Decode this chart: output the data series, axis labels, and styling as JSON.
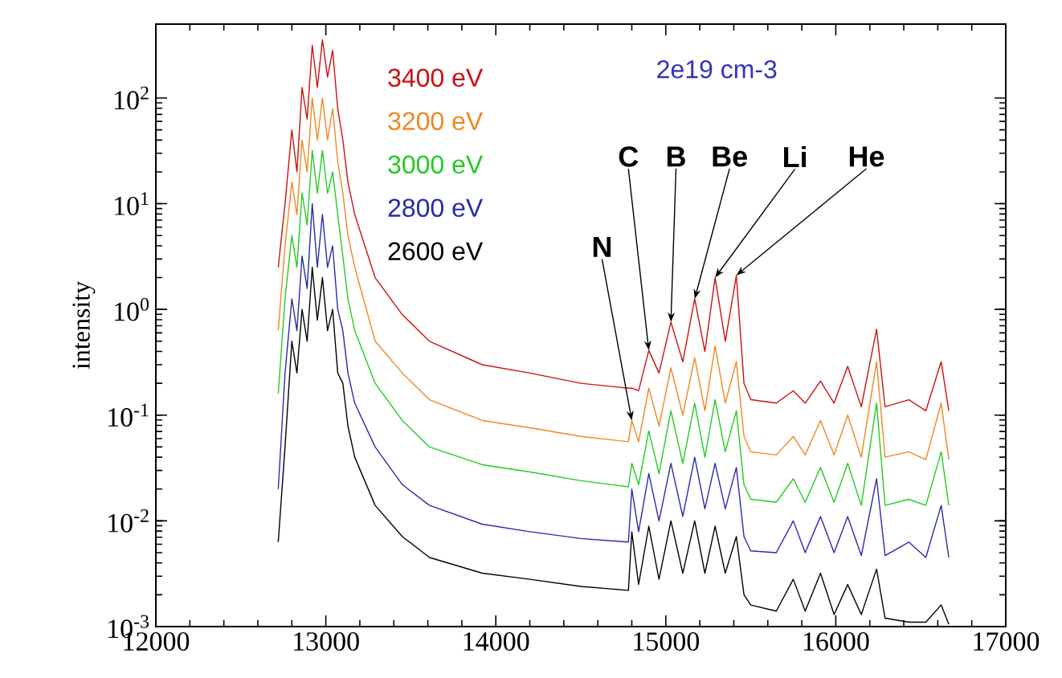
{
  "chart_data": {
    "type": "line",
    "ylabel": "intensity",
    "log": true,
    "xlim": [
      12000,
      17000
    ],
    "ylim": [
      0.001,
      500
    ],
    "xticks": [
      12000,
      13000,
      14000,
      15000,
      16000,
      17000
    ],
    "yticks": [
      {
        "value": 0.001,
        "label": "10$^{-3}$"
      },
      {
        "value": 0.01,
        "label": "10$^{-2}$"
      },
      {
        "value": 0.1,
        "label": "10$^{-1}$"
      },
      {
        "value": 1,
        "label": "10$^{0}$"
      },
      {
        "value": 10,
        "label": "10$^{1}$"
      },
      {
        "value": 100,
        "label": "10$^{2}$"
      }
    ],
    "annotations": [
      "2e19 cm-3",
      {
        "text": "N",
        "x": 14800,
        "y": 0.089
      },
      {
        "text": "C",
        "x": 14900,
        "y": 0.41
      },
      {
        "text": "B",
        "x": 15030,
        "y": 0.76
      },
      {
        "text": "Be",
        "x": 15170,
        "y": 1.26
      },
      {
        "text": "Li",
        "x": 15290,
        "y": 2
      },
      {
        "text": "He",
        "x": 15415,
        "y": 2.1
      }
    ],
    "x": [
      12720,
      12760,
      12800,
      12830,
      12860,
      12890,
      12920,
      12950,
      12980,
      13010,
      13040,
      13070,
      13100,
      13130,
      13170,
      13290,
      13450,
      13610,
      13920,
      14200,
      14500,
      14780,
      14800,
      14840,
      14900,
      14960,
      15030,
      15100,
      15170,
      15230,
      15290,
      15350,
      15415,
      15460,
      15500,
      15650,
      15750,
      15820,
      15910,
      15990,
      16070,
      16150,
      16240,
      16290,
      16430,
      16530,
      16620,
      16665
    ],
    "series": [
      {
        "name": "3400 eV",
        "color": "#cc1111",
        "values": [
          2.5,
          10,
          50,
          20,
          126,
          63,
          316,
          126,
          355,
          158,
          282,
          79,
          40,
          16,
          7.9,
          2,
          0.89,
          0.5,
          0.3,
          0.25,
          0.2,
          0.18,
          0.18,
          0.17,
          0.41,
          0.25,
          0.76,
          0.32,
          1.26,
          0.4,
          2,
          0.5,
          2.1,
          0.2,
          0.14,
          0.13,
          0.17,
          0.13,
          0.21,
          0.13,
          0.29,
          0.12,
          0.65,
          0.12,
          0.14,
          0.11,
          0.32,
          0.11
        ]
      },
      {
        "name": "3200 eV",
        "color": "#ee8822",
        "values": [
          0.63,
          4,
          16,
          7.9,
          40,
          20,
          100,
          40,
          100,
          40,
          79,
          25,
          12.6,
          5,
          2.5,
          0.5,
          0.25,
          0.14,
          0.089,
          0.076,
          0.063,
          0.056,
          0.089,
          0.056,
          0.18,
          0.079,
          0.28,
          0.1,
          0.35,
          0.11,
          0.45,
          0.13,
          0.32,
          0.063,
          0.045,
          0.042,
          0.063,
          0.042,
          0.089,
          0.042,
          0.1,
          0.04,
          0.32,
          0.04,
          0.045,
          0.038,
          0.13,
          0.038
        ]
      },
      {
        "name": "3000 eV",
        "color": "#22cc22",
        "values": [
          0.16,
          1.26,
          5,
          2.5,
          12.6,
          6.3,
          32,
          12.6,
          32,
          12.6,
          20,
          7.9,
          3.2,
          1.26,
          0.63,
          0.2,
          0.089,
          0.05,
          0.034,
          0.029,
          0.024,
          0.021,
          0.035,
          0.022,
          0.071,
          0.028,
          0.11,
          0.035,
          0.13,
          0.04,
          0.14,
          0.045,
          0.11,
          0.022,
          0.016,
          0.015,
          0.025,
          0.015,
          0.032,
          0.015,
          0.035,
          0.014,
          0.13,
          0.014,
          0.016,
          0.014,
          0.045,
          0.014
        ]
      },
      {
        "name": "2800 eV",
        "color": "#2a2aaa",
        "values": [
          0.02,
          0.25,
          1.26,
          0.63,
          3.2,
          1.58,
          10,
          2.5,
          7.9,
          2.5,
          4,
          1,
          0.63,
          0.25,
          0.13,
          0.05,
          0.022,
          0.014,
          0.0093,
          0.0079,
          0.0068,
          0.0063,
          0.02,
          0.0079,
          0.028,
          0.01,
          0.035,
          0.011,
          0.04,
          0.013,
          0.035,
          0.013,
          0.032,
          0.0071,
          0.0052,
          0.005,
          0.01,
          0.005,
          0.011,
          0.005,
          0.011,
          0.0047,
          0.025,
          0.0047,
          0.0063,
          0.0045,
          0.014,
          0.0045
        ]
      },
      {
        "name": "2600 eV",
        "color": "#000000",
        "values": [
          0.0063,
          0.05,
          0.5,
          0.25,
          1,
          0.5,
          2.5,
          0.79,
          2,
          0.63,
          1,
          0.25,
          0.2,
          0.079,
          0.04,
          0.014,
          0.0071,
          0.0045,
          0.0032,
          0.0028,
          0.0024,
          0.0022,
          0.0079,
          0.0025,
          0.0089,
          0.0028,
          0.01,
          0.0032,
          0.01,
          0.0032,
          0.0089,
          0.0032,
          0.0071,
          0.002,
          0.0016,
          0.0014,
          0.0028,
          0.0014,
          0.0032,
          0.0013,
          0.0025,
          0.0013,
          0.0035,
          0.0012,
          0.0011,
          0.0011,
          0.0016,
          0.00105
        ]
      }
    ]
  }
}
